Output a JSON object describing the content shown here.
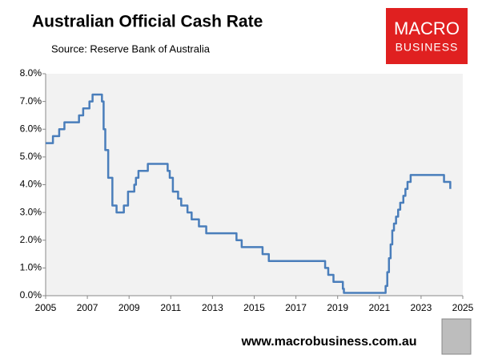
{
  "chart_data": {
    "type": "line",
    "title": "Australian Official Cash Rate",
    "subtitle": "Source: Reserve Bank of Australia",
    "x": [
      2005.0,
      2005.35,
      2005.65,
      2005.9,
      2006.6,
      2006.8,
      2007.1,
      2007.25,
      2007.7,
      2007.78,
      2007.86,
      2008.0,
      2008.2,
      2008.4,
      2008.75,
      2008.95,
      2009.25,
      2009.33,
      2009.45,
      2009.9,
      2010.85,
      2010.95,
      2011.1,
      2011.35,
      2011.5,
      2011.8,
      2012.0,
      2012.35,
      2012.7,
      2014.15,
      2014.4,
      2015.4,
      2015.7,
      2018.4,
      2018.55,
      2018.8,
      2019.25,
      2019.3,
      2019.85,
      2021.3,
      2021.38,
      2021.46,
      2021.54,
      2021.62,
      2021.7,
      2021.8,
      2021.9,
      2022.0,
      2022.15,
      2022.25,
      2022.35,
      2022.5,
      2022.9,
      2024.1,
      2024.4
    ],
    "series": [
      {
        "name": "Cash rate",
        "color": "#4a7ebb",
        "values": [
          5.5,
          5.75,
          6.0,
          6.25,
          6.5,
          6.75,
          7.0,
          7.25,
          7.0,
          6.0,
          5.25,
          4.25,
          3.25,
          3.0,
          3.25,
          3.75,
          4.0,
          4.25,
          4.5,
          4.75,
          4.5,
          4.25,
          3.75,
          3.5,
          3.25,
          3.0,
          2.75,
          2.5,
          2.25,
          2.0,
          1.75,
          1.5,
          1.25,
          1.0,
          0.75,
          0.5,
          0.25,
          0.1,
          0.1,
          0.35,
          0.85,
          1.35,
          1.85,
          2.35,
          2.6,
          2.85,
          3.1,
          3.35,
          3.6,
          3.85,
          4.1,
          4.35,
          4.35,
          4.1,
          3.85
        ]
      }
    ],
    "xlim": [
      2005,
      2025
    ],
    "xticks": [
      2005,
      2007,
      2009,
      2011,
      2013,
      2015,
      2017,
      2019,
      2021,
      2023,
      2025
    ],
    "ylim": [
      0,
      8
    ],
    "yticks": [
      {
        "value": 0,
        "label": "0.0%"
      },
      {
        "value": 1,
        "label": "1.0%"
      },
      {
        "value": 2,
        "label": "2.0%"
      },
      {
        "value": 3,
        "label": "3.0%"
      },
      {
        "value": 4,
        "label": "4.0%"
      },
      {
        "value": 5,
        "label": "5.0%"
      },
      {
        "value": 6,
        "label": "6.0%"
      },
      {
        "value": 7,
        "label": "7.0%"
      },
      {
        "value": 8,
        "label": "8.0%"
      }
    ],
    "grid": false
  },
  "logo": {
    "line1": "MACRO",
    "line2": "BUSINESS"
  },
  "footer": "www.macrobusiness.com.au"
}
